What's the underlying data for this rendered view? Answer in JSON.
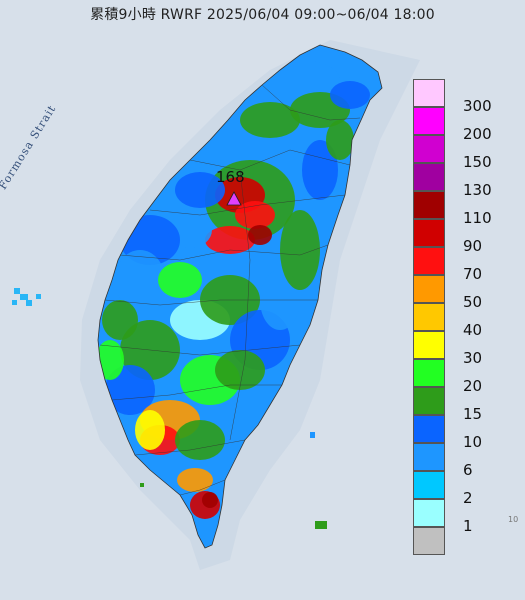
{
  "title": "累積9小時 RWRF 2025/06/04 09:00~06/04 18:00",
  "strait_label": "Formosa Strait",
  "max_value": {
    "label": "168",
    "color": "#e040fb"
  },
  "legend": [
    {
      "label": "300",
      "color": "#ffc8ff"
    },
    {
      "label": "200",
      "color": "#ff00ff"
    },
    {
      "label": "150",
      "color": "#d000d0"
    },
    {
      "label": "130",
      "color": "#a000a0"
    },
    {
      "label": "110",
      "color": "#a00000"
    },
    {
      "label": "90",
      "color": "#d00000"
    },
    {
      "label": "70",
      "color": "#ff1010"
    },
    {
      "label": "50",
      "color": "#ff9900"
    },
    {
      "label": "40",
      "color": "#ffc800"
    },
    {
      "label": "30",
      "color": "#ffff00"
    },
    {
      "label": "20",
      "color": "#22ff22"
    },
    {
      "label": "15",
      "color": "#2e9c1a"
    },
    {
      "label": "10",
      "color": "#0a64ff"
    },
    {
      "label": "6",
      "color": "#1e96ff"
    },
    {
      "label": "2",
      "color": "#00c8ff"
    },
    {
      "label": "1",
      "color": "#9affff"
    },
    {
      "label": "",
      "color": "#c0c0c0"
    }
  ],
  "legend_bottom_label": "1",
  "corner_mark": "10"
}
